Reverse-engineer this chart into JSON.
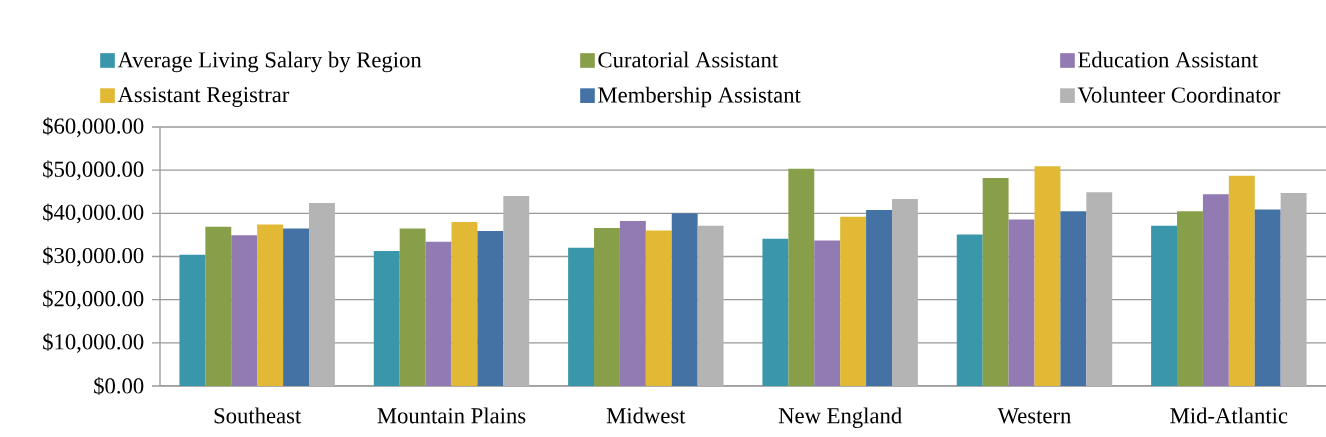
{
  "chart_data": {
    "type": "bar",
    "categories": [
      "Southeast",
      "Mountain Plains",
      "Midwest",
      "New England",
      "Western",
      "Mid-Atlantic"
    ],
    "series": [
      {
        "name": "Average Living Salary by Region",
        "color": "#3a96ab",
        "values": [
          30400,
          31300,
          32000,
          34100,
          35100,
          37100
        ]
      },
      {
        "name": "Curatorial Assistant",
        "color": "#889f4a",
        "values": [
          36900,
          36500,
          36600,
          50300,
          48200,
          40500
        ]
      },
      {
        "name": "Education Assistant",
        "color": "#927ab2",
        "values": [
          34900,
          33400,
          38200,
          33700,
          38600,
          44400
        ]
      },
      {
        "name": "Assistant Registrar",
        "color": "#e2b935",
        "values": [
          37400,
          38000,
          36000,
          39200,
          50900,
          48700
        ]
      },
      {
        "name": "Membership Assistant",
        "color": "#4472a5",
        "values": [
          36500,
          35900,
          40000,
          40800,
          40500,
          40900
        ]
      },
      {
        "name": "Volunteer Coordinator",
        "color": "#b4b4b4",
        "values": [
          42400,
          44000,
          37100,
          43300,
          44900,
          44700
        ]
      }
    ],
    "ylim": [
      0,
      60000
    ],
    "yticks": [
      {
        "value": 0,
        "label": "$0.00"
      },
      {
        "value": 10000,
        "label": "$10,000.00"
      },
      {
        "value": 20000,
        "label": "$20,000.00"
      },
      {
        "value": 30000,
        "label": "$30,000.00"
      },
      {
        "value": 40000,
        "label": "$40,000.00"
      },
      {
        "value": 50000,
        "label": "$50,000.00"
      },
      {
        "value": 60000,
        "label": "$60,000.00"
      }
    ],
    "grid": "y",
    "legend": "top"
  }
}
